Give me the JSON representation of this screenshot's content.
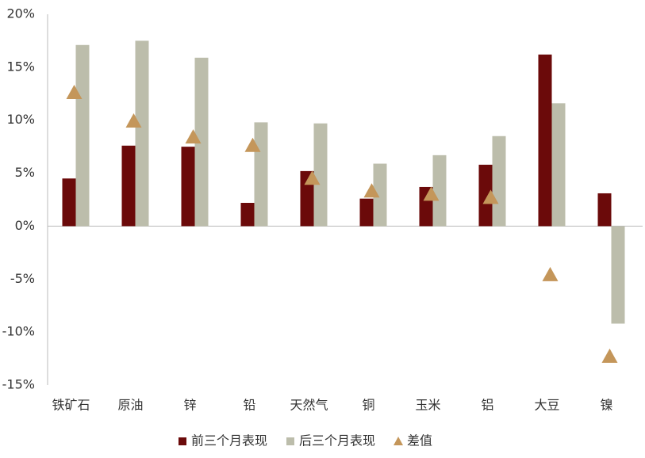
{
  "chart_data": {
    "type": "bar",
    "categories": [
      "铁矿石",
      "原油",
      "锌",
      "铅",
      "天然气",
      "铜",
      "玉米",
      "铝",
      "大豆",
      "镍"
    ],
    "series": [
      {
        "name": "前三个月表现",
        "color": "#6b0a0a",
        "kind": "bar",
        "values": [
          4.5,
          7.6,
          7.5,
          2.2,
          5.2,
          2.6,
          3.7,
          5.8,
          16.2,
          3.1
        ]
      },
      {
        "name": "后三个月表现",
        "color": "#bcbdab",
        "kind": "bar",
        "values": [
          17.1,
          17.5,
          15.9,
          9.8,
          9.7,
          5.9,
          6.7,
          8.5,
          11.6,
          -9.2
        ]
      },
      {
        "name": "差值",
        "color": "#c4965a",
        "kind": "triangle",
        "values": [
          12.6,
          9.9,
          8.4,
          7.6,
          4.5,
          3.3,
          3.0,
          2.7,
          -4.6,
          -12.3
        ]
      }
    ],
    "ylim": [
      -15,
      20
    ],
    "yticks": [
      {
        "value": -15,
        "label": "-15%"
      },
      {
        "value": -10,
        "label": "-10%"
      },
      {
        "value": -5,
        "label": "-5%"
      },
      {
        "value": 0,
        "label": "0%"
      },
      {
        "value": 5,
        "label": "5%"
      },
      {
        "value": 10,
        "label": "10%"
      },
      {
        "value": 15,
        "label": "15%"
      },
      {
        "value": 20,
        "label": "20%"
      }
    ],
    "legend": "bottom"
  }
}
